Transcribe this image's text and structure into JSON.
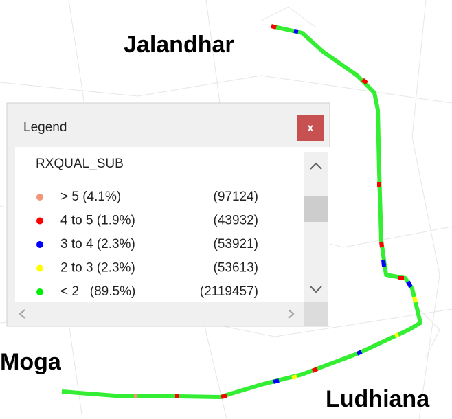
{
  "cities": [
    "Jalandhar",
    "Moga",
    "Ludhiana"
  ],
  "legend": {
    "title": "Legend",
    "close": "x",
    "field": "RXQUAL_SUB",
    "entries": [
      {
        "label": "> 5 (4.1%)",
        "count": "(97124)",
        "color": "#f4957a"
      },
      {
        "label": "4 to 5 (1.9%)",
        "count": "(43932)",
        "color": "#ff0000"
      },
      {
        "label": "3 to 4 (2.3%)",
        "count": "(53921)",
        "color": "#0000ff"
      },
      {
        "label": "2 to 3 (2.3%)",
        "count": "(53613)",
        "color": "#ffff00"
      },
      {
        "label": "< 2   (89.5%)",
        "count": "(2119457)",
        "color": "#00ee00"
      }
    ]
  }
}
